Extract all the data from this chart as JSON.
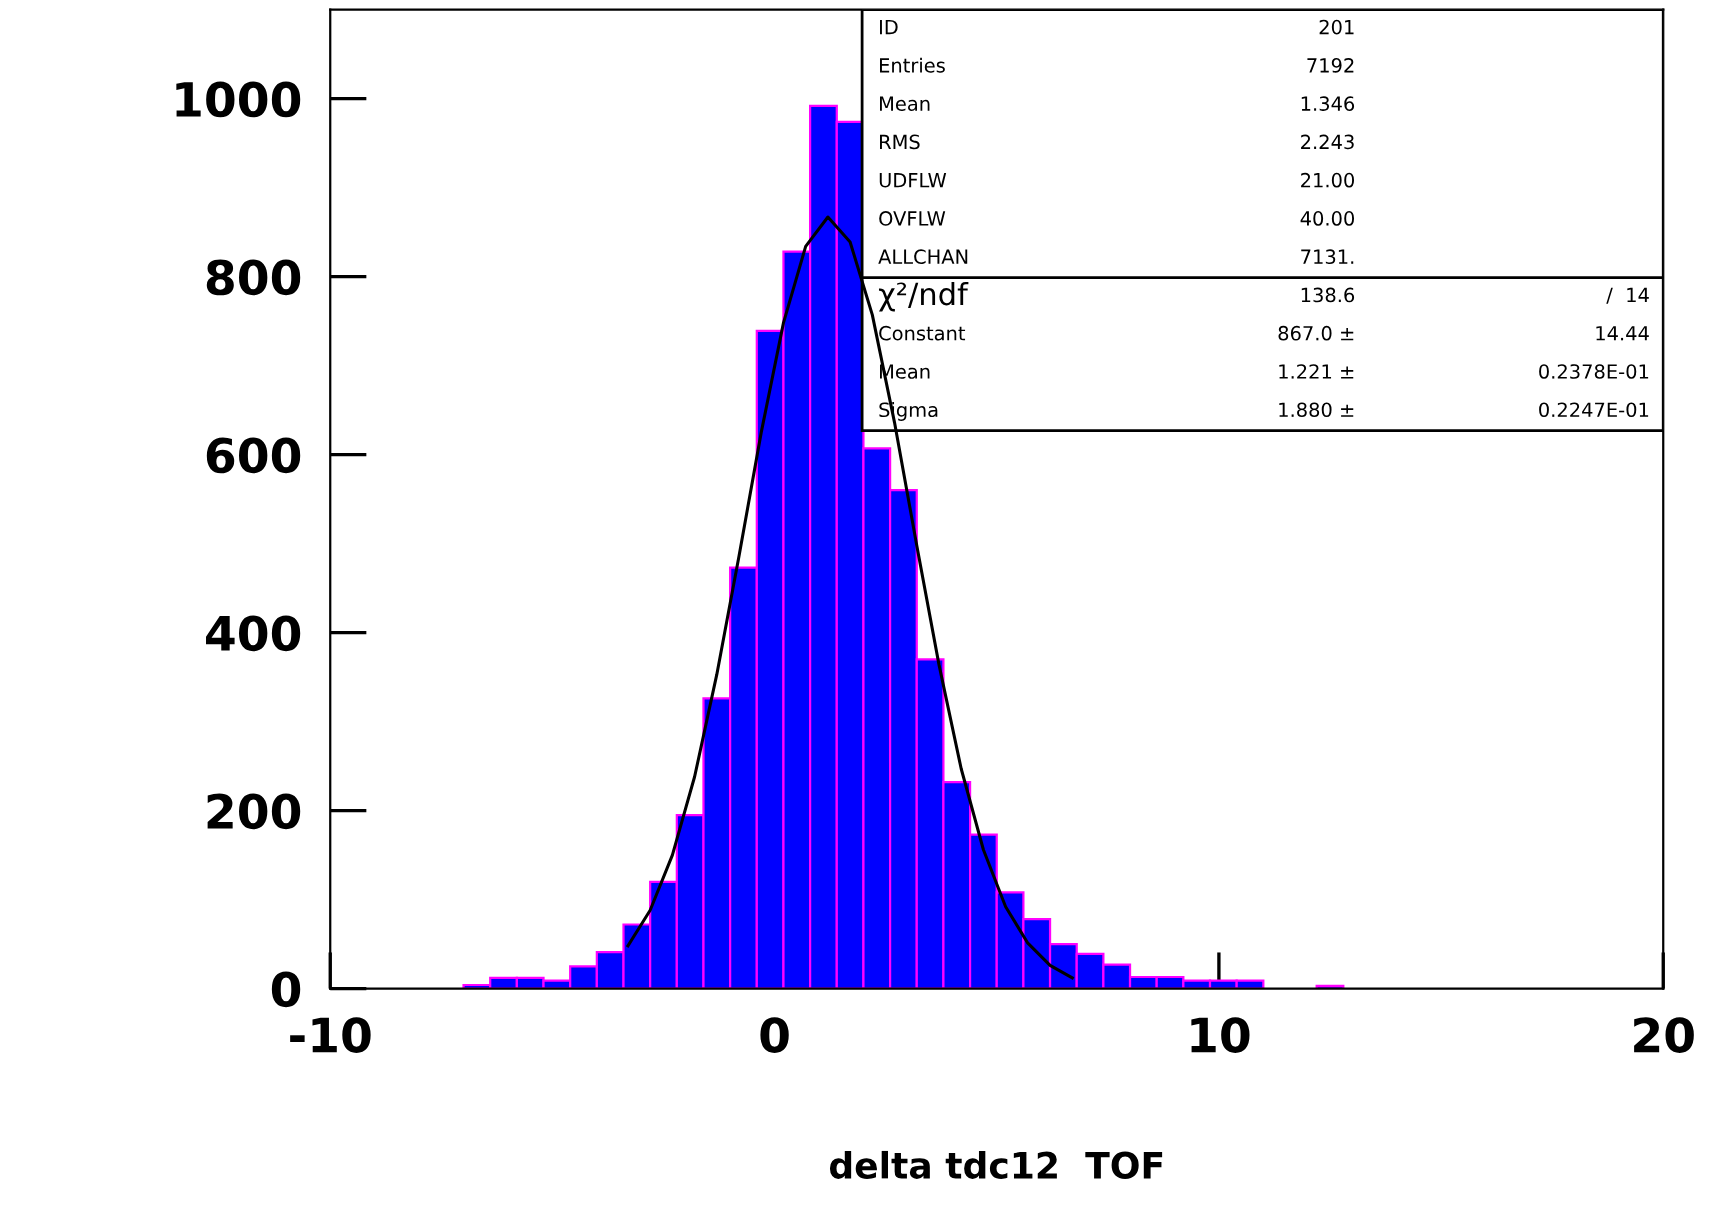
{
  "chart_data": {
    "type": "histogram",
    "xlabel": "delta tdc12  TOF",
    "xlim": [
      -10,
      20
    ],
    "xticks": [
      -10,
      0,
      10,
      20
    ],
    "ylim": [
      0,
      1100
    ],
    "yticks": [
      0,
      200,
      400,
      600,
      800,
      1000
    ],
    "grid": false,
    "legend": false,
    "series": [
      {
        "color": "#0000ff",
        "bins": [
          -10,
          -9.4,
          -8.8,
          -8.2,
          -7.6,
          -7,
          -6.4,
          -5.8,
          -5.2,
          -4.6,
          -4,
          -3.4,
          -2.8,
          -2.2,
          -1.6,
          -1,
          -0.4,
          0.2,
          0.8,
          1.4,
          2,
          2.6,
          3.2,
          3.8,
          4.4,
          5,
          5.6,
          6.2,
          6.8,
          7.4,
          8,
          8.6,
          9.2,
          9.8,
          10.4,
          11,
          11.6,
          12.2,
          12.8,
          13.4,
          14,
          14.6,
          15.2,
          15.8,
          16.4,
          17,
          17.6,
          18.2,
          18.8,
          19.4,
          20
        ],
        "values": [
          0,
          0,
          0,
          0,
          0,
          4,
          12,
          12,
          9,
          25,
          41,
          72,
          120,
          195,
          326,
          473,
          739,
          828,
          992,
          974,
          607,
          560,
          370,
          232,
          173,
          108,
          78,
          50,
          39,
          27,
          13,
          13,
          9,
          9,
          9,
          0,
          0,
          3,
          0,
          0,
          0,
          0,
          0,
          0,
          0,
          0,
          0,
          0,
          0,
          0
        ]
      },
      {
        "type": "line",
        "color": "#000000",
        "x": [
          -3.3,
          -2.8,
          -2.3,
          -1.8,
          -1.3,
          -0.8,
          -0.3,
          0.2,
          0.7,
          1.2,
          1.7,
          2.2,
          2.7,
          3.2,
          3.7,
          4.2,
          4.7,
          5.2,
          5.7,
          6.2,
          6.7
        ],
        "values": [
          48,
          88,
          150,
          238,
          353,
          486,
          625,
          748,
          834,
          867,
          839,
          757,
          636,
          498,
          364,
          247,
          156,
          92,
          51,
          26,
          12
        ]
      }
    ],
    "annotations": [
      "ID\t201",
      "Entries\t7192",
      "Mean\t1.346",
      "RMS\t2.243",
      "UDFLW\t21.00",
      "OVFLW\t40.00",
      "ALLCHAN\t7131.",
      "χ²/ndf\t138.6\t/  14",
      "Constant\t867.0 ±\t14.44",
      "Mean\t1.221 ±\t0.2378E-01",
      "Sigma\t1.880 ±\t0.2247E-01"
    ]
  }
}
